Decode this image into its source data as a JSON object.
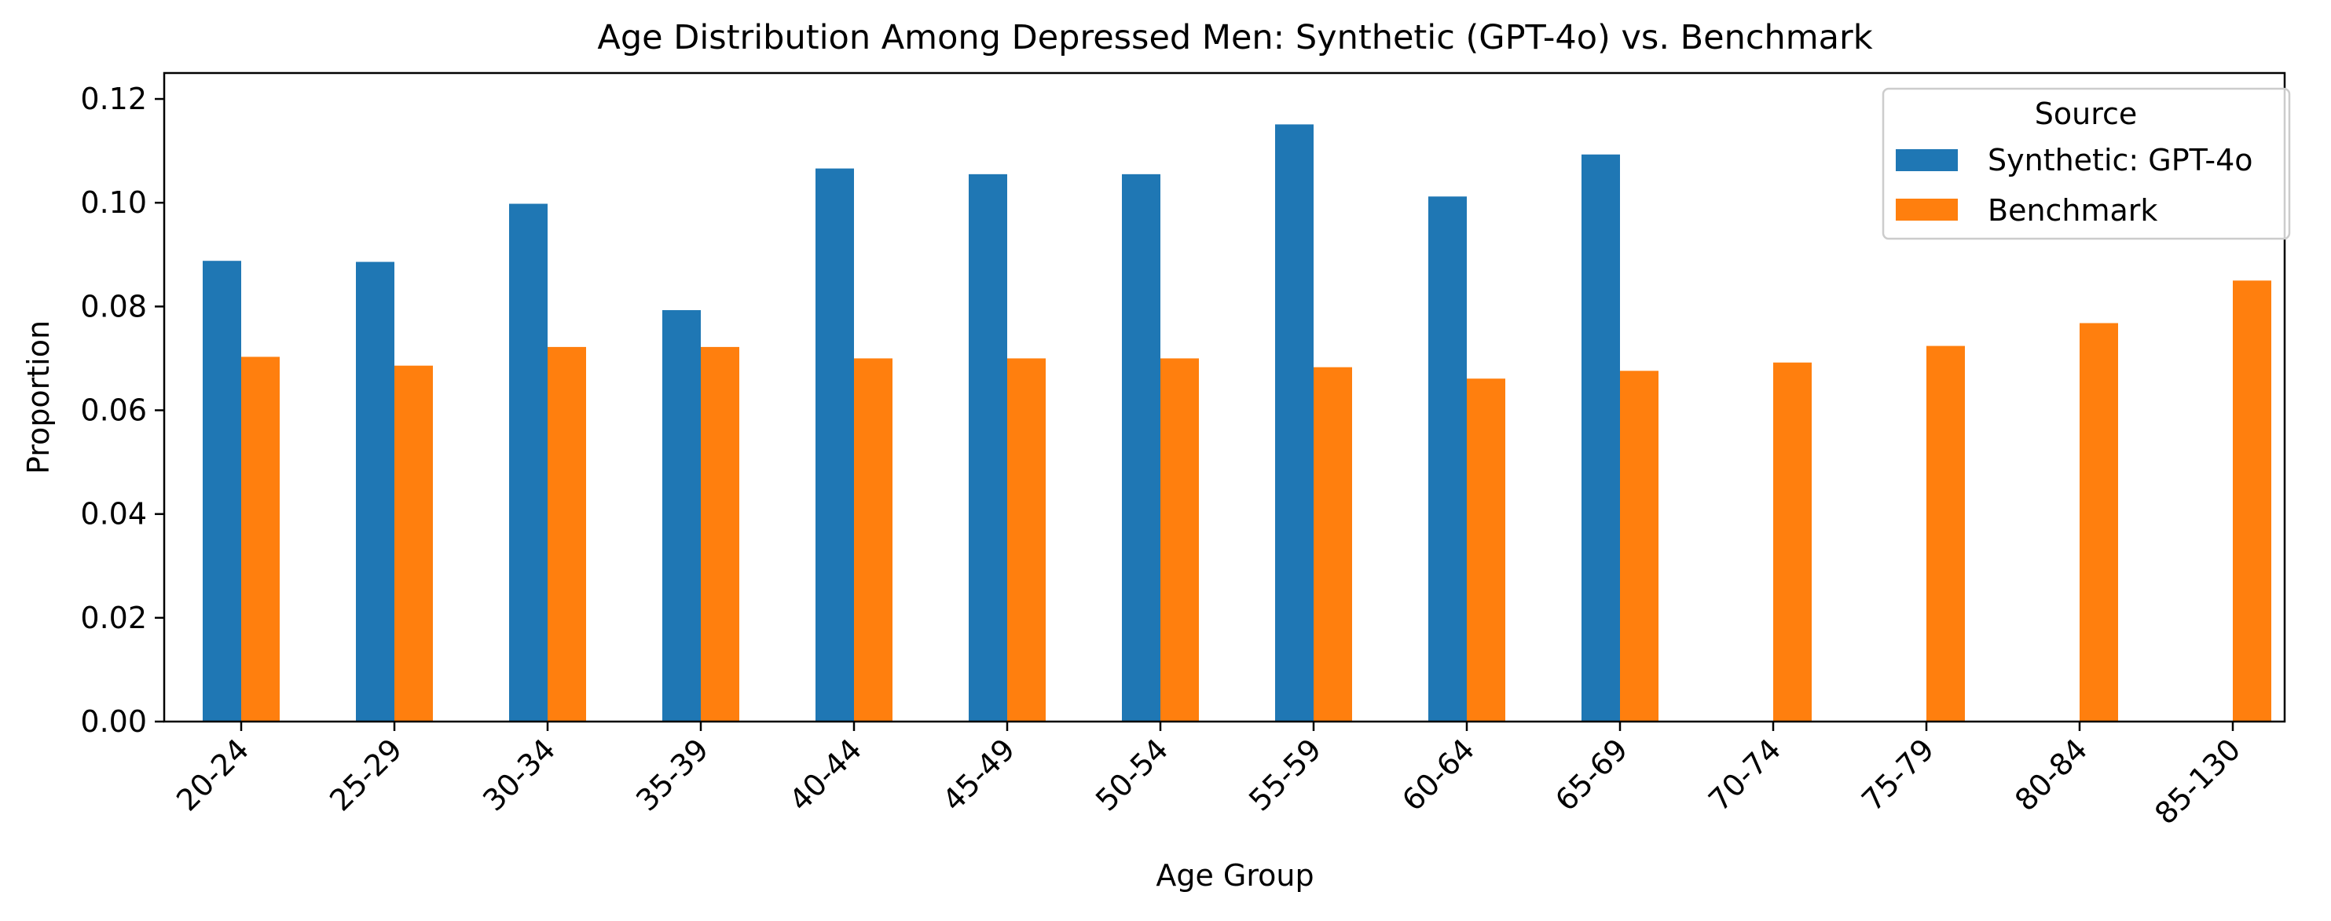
{
  "chart_data": {
    "type": "bar",
    "title": "Age Distribution Among Depressed Men: Synthetic (GPT-4o) vs. Benchmark",
    "xlabel": "Age Group",
    "ylabel": "Proportion",
    "categories": [
      "20-24",
      "25-29",
      "30-34",
      "35-39",
      "40-44",
      "45-49",
      "50-54",
      "55-59",
      "60-64",
      "65-69",
      "70-74",
      "75-79",
      "80-84",
      "85-130"
    ],
    "series": [
      {
        "name": "Synthetic: GPT-4o",
        "color": "#1f77b4",
        "values": [
          0.0888,
          0.0886,
          0.0998,
          0.0793,
          0.1066,
          0.1055,
          0.1055,
          0.1151,
          0.1012,
          0.1093,
          null,
          null,
          null,
          null
        ]
      },
      {
        "name": "Benchmark",
        "color": "#ff7f0e",
        "values": [
          0.0703,
          0.0686,
          0.0722,
          0.0722,
          0.07,
          0.07,
          0.07,
          0.0683,
          0.0661,
          0.0676,
          0.0692,
          0.0724,
          0.0768,
          0.085
        ]
      }
    ],
    "ylim": [
      0,
      0.125
    ],
    "yticks": [
      "0.00",
      "0.02",
      "0.04",
      "0.06",
      "0.08",
      "0.10",
      "0.12"
    ],
    "legend": {
      "title": "Source",
      "position": "top-right"
    },
    "grid": false
  }
}
